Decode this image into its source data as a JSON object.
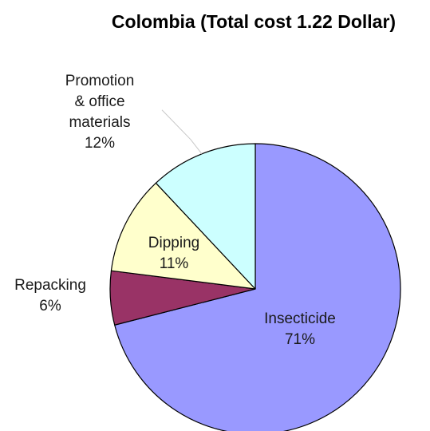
{
  "chart_data": {
    "type": "pie",
    "title": "Colombia (Total cost 1.22 Dollar)",
    "slices": [
      {
        "label": "Insecticide",
        "value": 71,
        "value_label": "71%",
        "color": "#9999ff"
      },
      {
        "label": "Repacking",
        "value": 6,
        "value_label": "6%",
        "color": "#993366"
      },
      {
        "label": "Dipping",
        "value": 11,
        "value_label": "11%",
        "color": "#ffffcc"
      },
      {
        "label": "Promotion & office materials",
        "label_lines": [
          "Promotion",
          "& office",
          "materials"
        ],
        "value": 12,
        "value_label": "12%",
        "color": "#ccffff"
      }
    ],
    "start_angle_deg": 0,
    "direction": "clockwise",
    "legend": "none"
  }
}
